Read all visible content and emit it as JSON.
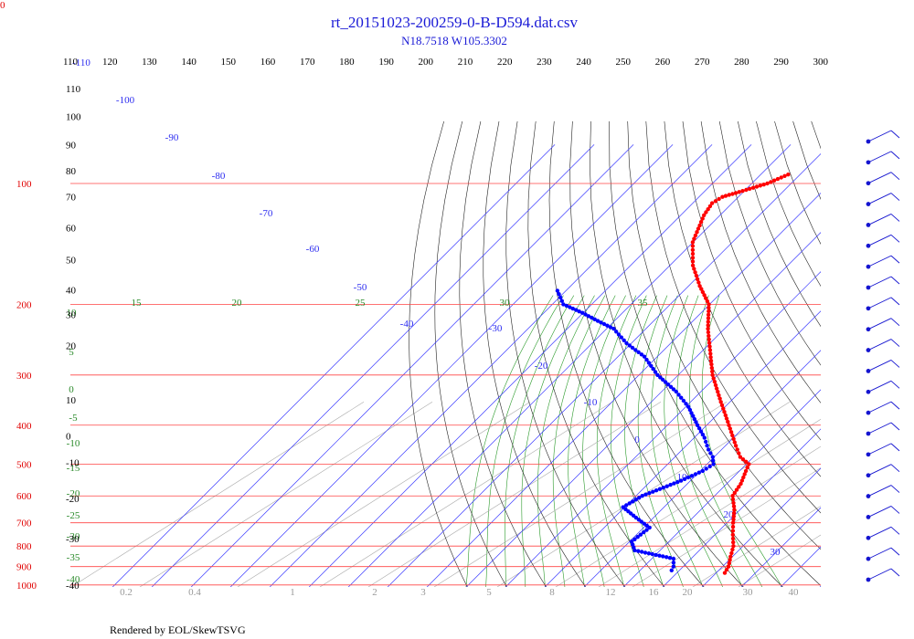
{
  "corner_label": "0",
  "footer": "Rendered by EOL/SkewTSVG",
  "chart_data": {
    "type": "skew-t log-p diagram",
    "title": "rt_20151023-200259-0-B-D594.dat.csv",
    "subtitle": "N18.7518 W105.3302",
    "x_ticks": [
      "110",
      "120",
      "130",
      "140",
      "150",
      "160",
      "170",
      "180",
      "190",
      "200",
      "210",
      "220",
      "230",
      "240",
      "250",
      "260",
      "270",
      "280",
      "290",
      "300"
    ],
    "pressure_ticks": [
      "100",
      "200",
      "300",
      "400",
      "500",
      "600",
      "700",
      "800",
      "900",
      "1000"
    ],
    "pressure_levels": [
      100,
      200,
      300,
      400,
      500,
      600,
      700,
      800,
      900,
      1000
    ],
    "height_ticks": [
      {
        "label": "110",
        "p": 58
      },
      {
        "label": "100",
        "p": 68
      },
      {
        "label": "90",
        "p": 80
      },
      {
        "label": "80",
        "p": 93
      },
      {
        "label": "70",
        "p": 108
      },
      {
        "label": "60",
        "p": 129
      },
      {
        "label": "50",
        "p": 155
      },
      {
        "label": "40",
        "p": 184
      },
      {
        "label": "30",
        "p": 212
      },
      {
        "label": "20",
        "p": 253
      },
      {
        "label": "10",
        "p": 346
      },
      {
        "label": "0",
        "p": 425
      },
      {
        "label": "-10",
        "p": 495
      },
      {
        "label": "-20",
        "p": 608
      },
      {
        "label": "-30",
        "p": 767
      },
      {
        "label": "-40",
        "p": 1000
      }
    ],
    "isotherm_labels": [
      "-110",
      "-100",
      "-90",
      "-80",
      "-70",
      "-60",
      "-50",
      "-40",
      "-30",
      "-20",
      "-10",
      "0",
      "10",
      "20",
      "30"
    ],
    "theta_e_labels": [
      "15",
      "20",
      "25",
      "30",
      "35",
      "10",
      "5",
      "0",
      "-5",
      "-10",
      "-15",
      "-20",
      "-25",
      "-30",
      "-35",
      "-40"
    ],
    "mixing_ratio_labels": [
      "0.2",
      "0.4",
      "1",
      "2",
      "3",
      "5",
      "8",
      "12",
      "16",
      "20",
      "30",
      "40"
    ],
    "series": [
      {
        "name": "temperature",
        "color": "#ff0000",
        "points": [
          [
            95,
            -63
          ],
          [
            100,
            -66
          ],
          [
            105,
            -71
          ],
          [
            108,
            -74
          ],
          [
            112,
            -75
          ],
          [
            120,
            -74
          ],
          [
            140,
            -70
          ],
          [
            160,
            -64
          ],
          [
            180,
            -57
          ],
          [
            200,
            -50
          ],
          [
            230,
            -44
          ],
          [
            260,
            -38
          ],
          [
            300,
            -31
          ],
          [
            350,
            -22
          ],
          [
            400,
            -14
          ],
          [
            450,
            -7
          ],
          [
            480,
            -3
          ],
          [
            500,
            1
          ],
          [
            520,
            2
          ],
          [
            560,
            4
          ],
          [
            600,
            5
          ],
          [
            650,
            9
          ],
          [
            700,
            12
          ],
          [
            750,
            15
          ],
          [
            800,
            18
          ],
          [
            850,
            20
          ],
          [
            900,
            22
          ],
          [
            950,
            23
          ]
        ]
      },
      {
        "name": "dewpoint",
        "color": "#0000ff",
        "points": [
          [
            185,
            -92
          ],
          [
            200,
            -87
          ],
          [
            210,
            -80
          ],
          [
            220,
            -74
          ],
          [
            230,
            -68
          ],
          [
            250,
            -61
          ],
          [
            270,
            -53
          ],
          [
            300,
            -45
          ],
          [
            330,
            -36
          ],
          [
            360,
            -29
          ],
          [
            400,
            -22
          ],
          [
            430,
            -17
          ],
          [
            460,
            -13
          ],
          [
            480,
            -10
          ],
          [
            500,
            -8
          ],
          [
            520,
            -9
          ],
          [
            550,
            -12
          ],
          [
            600,
            -18
          ],
          [
            640,
            -20
          ],
          [
            680,
            -14
          ],
          [
            720,
            -8
          ],
          [
            780,
            -9
          ],
          [
            820,
            -6
          ],
          [
            860,
            6
          ],
          [
            900,
            8
          ],
          [
            940,
            9
          ]
        ]
      }
    ],
    "wind_barbs_count": 22
  }
}
